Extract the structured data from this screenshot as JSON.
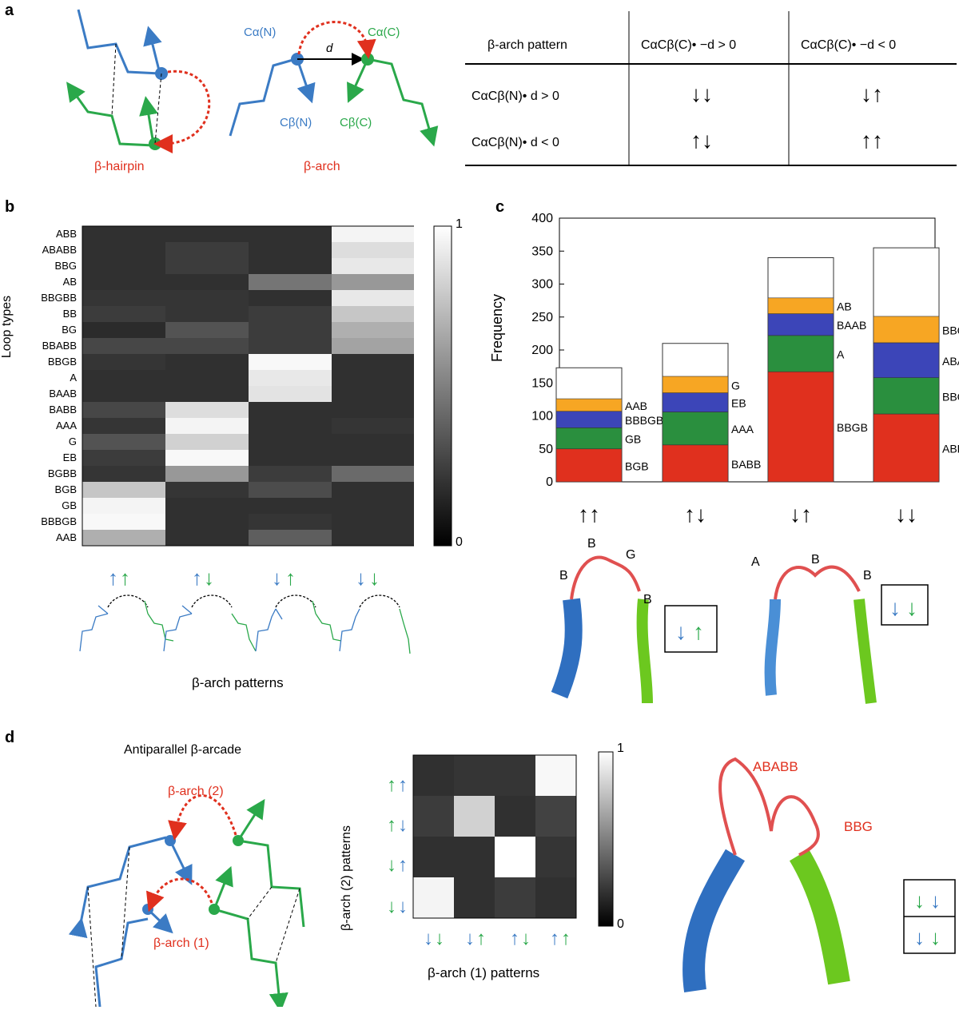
{
  "panels": {
    "a": "a",
    "b": "b",
    "c": "c",
    "d": "d"
  },
  "a": {
    "hairpin_label": "β-hairpin",
    "arch_label": "β-arch",
    "ca_n": "Cα(N)",
    "ca_c": "Cα(C)",
    "cb_n": "Cβ(N)",
    "cb_c": "Cβ(C)",
    "d": "d",
    "table": {
      "header": "β-arch pattern",
      "col1": "CαCβ(C)• −d > 0",
      "col2": "CαCβ(C)• −d < 0",
      "row1": "CαCβ(N)• d > 0",
      "row2": "CαCβ(N)• d < 0",
      "cells": [
        [
          "↓↓",
          "↓↑"
        ],
        [
          "↑↓",
          "↑↑"
        ]
      ]
    }
  },
  "b": {
    "ylabel": "Loop types",
    "xlabel": "β-arch patterns",
    "colorbar": {
      "max": "1",
      "min": "0"
    },
    "rows": [
      "ABB",
      "ABABB",
      "BBG",
      "AB",
      "BBGBB",
      "BB",
      "BG",
      "BBABB",
      "BBGB",
      "A",
      "BAAB",
      "BABB",
      "AAA",
      "G",
      "EB",
      "BGBB",
      "BGB",
      "GB",
      "BBBGB",
      "AAB"
    ],
    "values": [
      [
        0.1,
        0.1,
        0.1,
        0.95
      ],
      [
        0.1,
        0.15,
        0.1,
        0.85
      ],
      [
        0.1,
        0.15,
        0.1,
        0.9
      ],
      [
        0.1,
        0.1,
        0.4,
        0.55
      ],
      [
        0.12,
        0.12,
        0.1,
        0.9
      ],
      [
        0.15,
        0.12,
        0.15,
        0.75
      ],
      [
        0.08,
        0.25,
        0.15,
        0.65
      ],
      [
        0.2,
        0.2,
        0.15,
        0.6
      ],
      [
        0.12,
        0.1,
        0.97,
        0.1
      ],
      [
        0.1,
        0.1,
        0.9,
        0.1
      ],
      [
        0.1,
        0.1,
        0.88,
        0.1
      ],
      [
        0.2,
        0.85,
        0.1,
        0.1
      ],
      [
        0.12,
        0.95,
        0.1,
        0.12
      ],
      [
        0.25,
        0.8,
        0.1,
        0.1
      ],
      [
        0.15,
        0.97,
        0.1,
        0.1
      ],
      [
        0.12,
        0.55,
        0.15,
        0.35
      ],
      [
        0.75,
        0.12,
        0.22,
        0.1
      ],
      [
        0.95,
        0.1,
        0.1,
        0.1
      ],
      [
        0.97,
        0.1,
        0.12,
        0.1
      ],
      [
        0.65,
        0.1,
        0.3,
        0.1
      ]
    ]
  },
  "chart_data": {
    "type": "bar",
    "ylabel": "Frequency",
    "ylim": [
      0,
      400
    ],
    "yticks": [
      "0",
      "50",
      "100",
      "150",
      "200",
      "250",
      "300",
      "350",
      "400"
    ],
    "categories": [
      "↑↑",
      "↑↓",
      "↓↑",
      "↓↓"
    ],
    "colors": [
      "#e0301e",
      "#2a8f3e",
      "#3c45b8",
      "#f7a623",
      "#ffffff"
    ],
    "bars": [
      {
        "total": 173,
        "segments": [
          {
            "label": "BGB",
            "value": 50
          },
          {
            "label": "GB",
            "value": 32
          },
          {
            "label": "BBBGB",
            "value": 25
          },
          {
            "label": "AAB",
            "value": 19
          }
        ]
      },
      {
        "total": 210,
        "segments": [
          {
            "label": "BABB",
            "value": 56
          },
          {
            "label": "AAA",
            "value": 50
          },
          {
            "label": "EB",
            "value": 29
          },
          {
            "label": "G",
            "value": 25
          }
        ]
      },
      {
        "total": 340,
        "segments": [
          {
            "label": "BBGB",
            "value": 167
          },
          {
            "label": "A",
            "value": 55
          },
          {
            "label": "BAAB",
            "value": 33
          },
          {
            "label": "AB",
            "value": 24
          }
        ]
      },
      {
        "total": 355,
        "segments": [
          {
            "label": "ABB",
            "value": 103
          },
          {
            "label": "BBG",
            "value": 55
          },
          {
            "label": "ABABB",
            "value": 53
          },
          {
            "label": "BBGBB",
            "value": 40
          }
        ]
      }
    ]
  },
  "c_struct": {
    "left": [
      "B",
      "B",
      "G",
      "B"
    ],
    "right": [
      "A",
      "B",
      "B"
    ]
  },
  "d": {
    "title": "Antiparallel β-arcade",
    "arch1": "β-arch (1)",
    "arch2": "β-arch (2)",
    "ylabel": "β-arch (2) patterns",
    "xlabel": "β-arch (1) patterns",
    "colorbar": {
      "max": "1",
      "min": "0"
    },
    "matrix": [
      [
        0.1,
        0.12,
        0.12,
        0.97
      ],
      [
        0.15,
        0.8,
        0.1,
        0.18
      ],
      [
        0.1,
        0.1,
        1.0,
        0.12
      ],
      [
        0.95,
        0.1,
        0.15,
        0.1
      ]
    ],
    "labels": [
      "ABABB",
      "BBG"
    ]
  }
}
